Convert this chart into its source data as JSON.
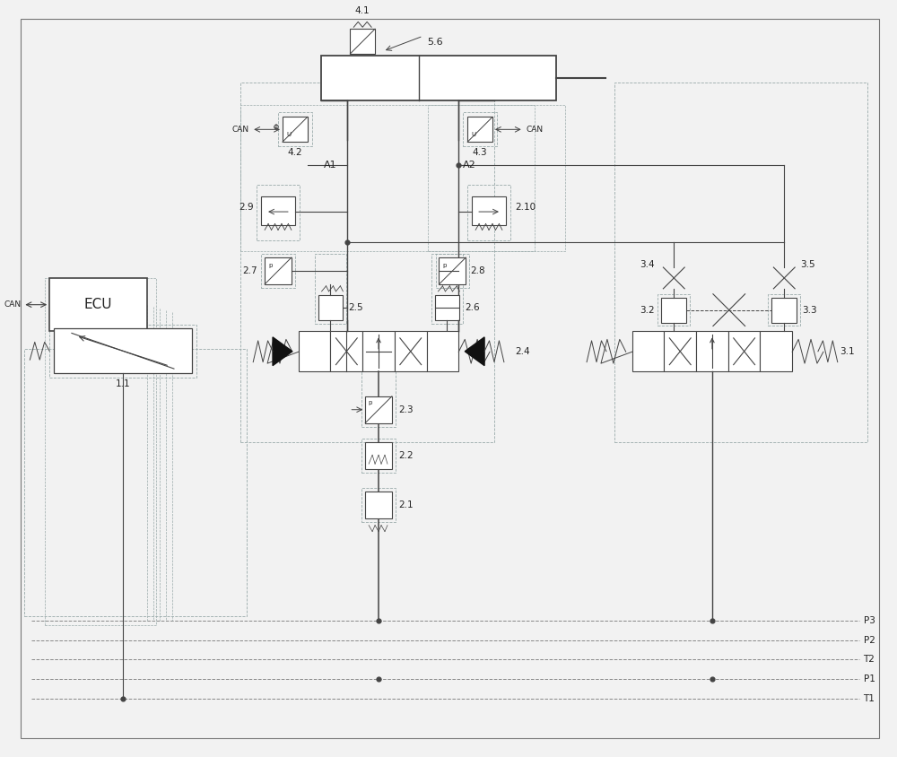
{
  "bg_color": "#f2f2f2",
  "line_color": "#444444",
  "dashed_color": "#99aaaa",
  "text_color": "#222222",
  "thin_lw": 0.7,
  "med_lw": 1.0,
  "thick_lw": 1.5,
  "figsize": [
    10.0,
    8.44
  ],
  "dpi": 100,
  "labels": {
    "ecu": "ECU",
    "can_left": "CAN",
    "can_42": "CAN",
    "can_43": "CAN",
    "lbl_41": "4.1",
    "lbl_42": "4.2",
    "lbl_43": "4.3",
    "lbl_56": "5.6",
    "lbl_29": "2.9",
    "lbl_210": "2.10",
    "lbl_27": "2.7",
    "lbl_28": "2.8",
    "lbl_25": "2.5",
    "lbl_26": "2.6",
    "lbl_24": "2.4",
    "lbl_23": "2.3",
    "lbl_22": "2.2",
    "lbl_21": "2.1",
    "lbl_11": "1.1",
    "lbl_31": "3.1",
    "lbl_32": "3.2",
    "lbl_33": "3.3",
    "lbl_34": "3.4",
    "lbl_35": "3.5",
    "lbl_A1": "A1",
    "lbl_A2": "A2",
    "lbl_P3": "P3",
    "lbl_P2": "P2",
    "lbl_T2": "T2",
    "lbl_P1": "P1",
    "lbl_T1": "T1"
  }
}
